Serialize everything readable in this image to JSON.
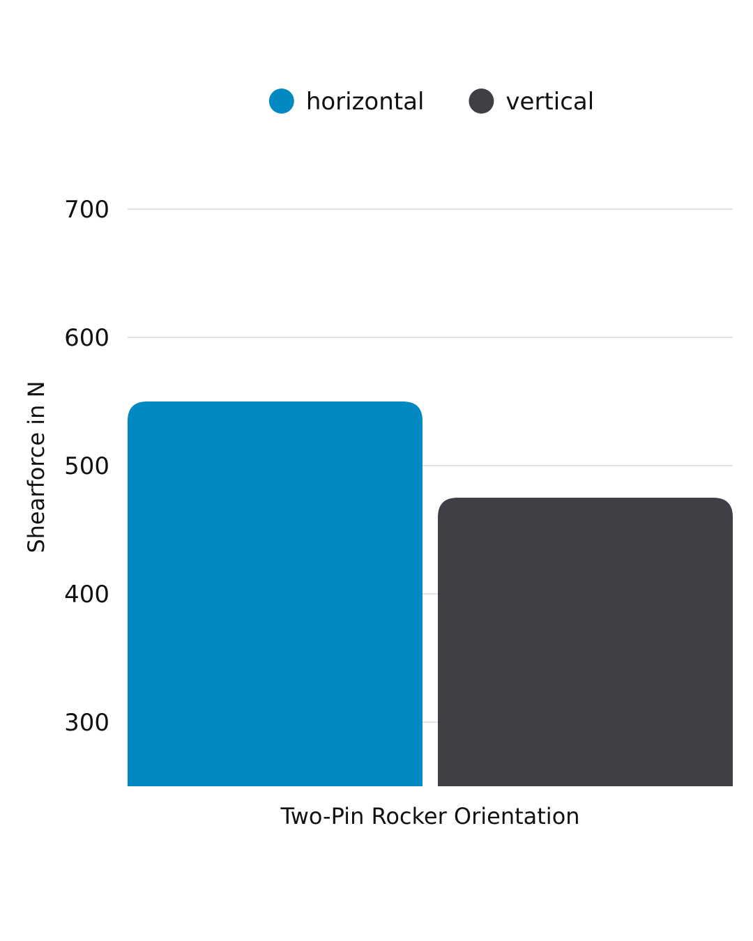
{
  "chart_data": {
    "type": "bar",
    "categories": [
      "Two-Pin Rocker Orientation"
    ],
    "series": [
      {
        "name": "horizontal",
        "color": "#008AC1",
        "values": [
          550
        ]
      },
      {
        "name": "vertical",
        "color": "#3E4045",
        "values": [
          475
        ]
      }
    ],
    "title": "",
    "xlabel": "Two-Pin Rocker Orientation",
    "ylabel": "Shearforce in N",
    "ylim": [
      250,
      700
    ],
    "yticks": [
      300,
      400,
      500,
      600,
      700
    ],
    "grid": true,
    "legend": "top-center"
  }
}
